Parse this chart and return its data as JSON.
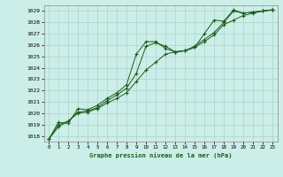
{
  "title": "Graphe pression niveau de la mer (hPa)",
  "bg_color": "#cceee8",
  "grid_color": "#aad4cc",
  "line_color": "#1a5c1a",
  "xlim": [
    -0.5,
    23.5
  ],
  "ylim": [
    1017.5,
    1029.5
  ],
  "yticks": [
    1018,
    1019,
    1020,
    1021,
    1022,
    1023,
    1024,
    1025,
    1026,
    1027,
    1028,
    1029
  ],
  "xticks": [
    0,
    1,
    2,
    3,
    4,
    5,
    6,
    7,
    8,
    9,
    10,
    11,
    12,
    13,
    14,
    15,
    16,
    17,
    18,
    19,
    20,
    21,
    22,
    23
  ],
  "series": [
    {
      "x": [
        0,
        1,
        2,
        3,
        4,
        5,
        6,
        7,
        8,
        9,
        10,
        11,
        12,
        13,
        14,
        15,
        16,
        17,
        18,
        19,
        20,
        21,
        22,
        23
      ],
      "y": [
        1017.7,
        1019.2,
        1019.1,
        1020.4,
        1020.3,
        1020.7,
        1021.3,
        1021.8,
        1022.5,
        1025.2,
        1026.3,
        1026.3,
        1025.7,
        1025.4,
        1025.5,
        1025.9,
        1026.5,
        1027.1,
        1028.0,
        1029.0,
        1028.8,
        1028.9,
        1029.0,
        1029.1
      ]
    },
    {
      "x": [
        0,
        1,
        2,
        3,
        4,
        5,
        6,
        7,
        8,
        9,
        10,
        11,
        12,
        13,
        14,
        15,
        16,
        17,
        18,
        19,
        20,
        21,
        22,
        23
      ],
      "y": [
        1017.7,
        1019.0,
        1019.3,
        1020.1,
        1020.2,
        1020.5,
        1021.1,
        1021.6,
        1022.2,
        1023.5,
        1025.9,
        1026.2,
        1025.9,
        1025.4,
        1025.5,
        1025.8,
        1027.0,
        1028.2,
        1028.1,
        1029.1,
        1028.8,
        1028.9,
        1029.0,
        1029.1
      ]
    },
    {
      "x": [
        0,
        1,
        2,
        3,
        4,
        5,
        6,
        7,
        8,
        9,
        10,
        11,
        12,
        13,
        14,
        15,
        16,
        17,
        18,
        19,
        20,
        21,
        22,
        23
      ],
      "y": [
        1017.7,
        1018.8,
        1019.3,
        1020.0,
        1020.1,
        1020.4,
        1020.9,
        1021.3,
        1021.8,
        1022.8,
        1023.8,
        1024.5,
        1025.2,
        1025.4,
        1025.5,
        1025.8,
        1026.3,
        1026.9,
        1027.8,
        1028.2,
        1028.6,
        1028.8,
        1029.0,
        1029.1
      ]
    }
  ]
}
